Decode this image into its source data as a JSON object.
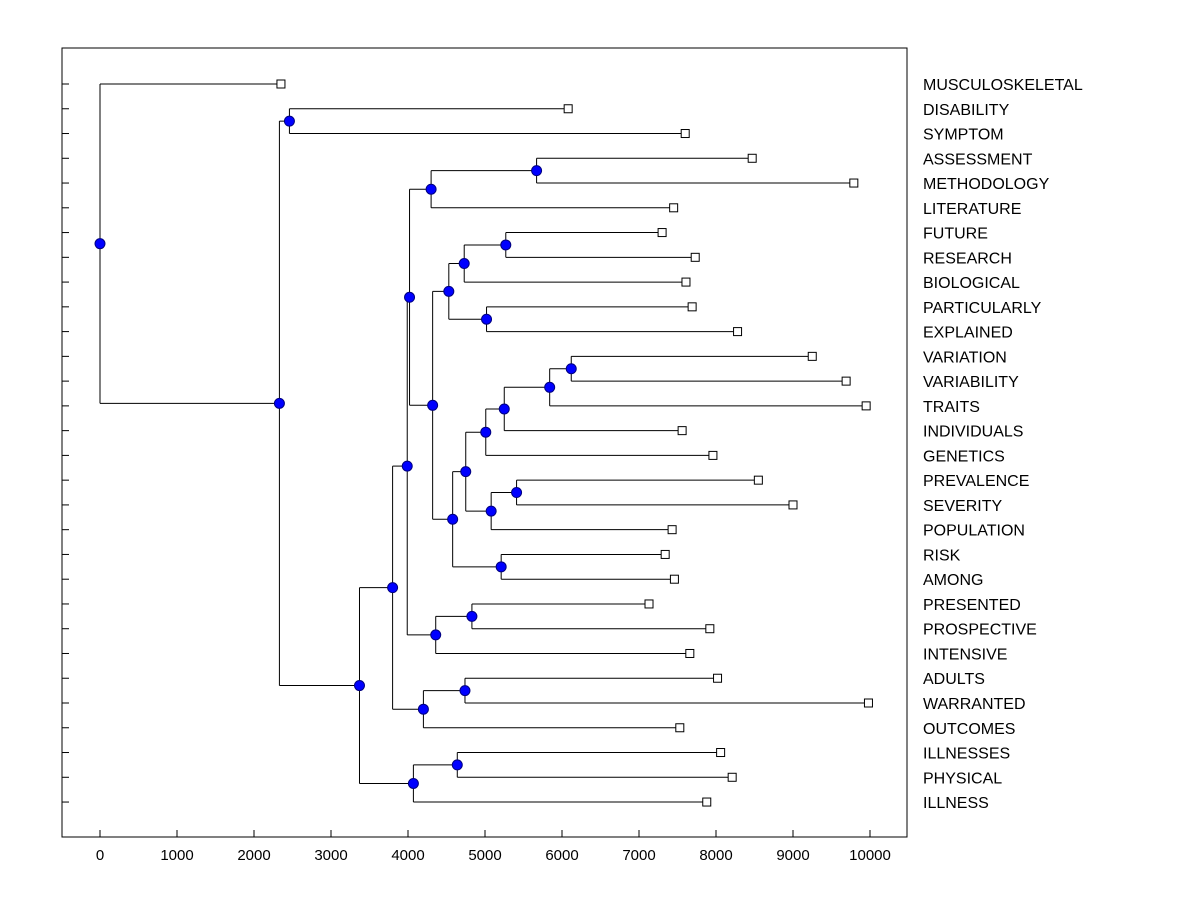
{
  "chart_data": {
    "type": "dendrogram",
    "title": "",
    "xlabel": "",
    "ylabel": "",
    "xlim": [
      -500,
      10500
    ],
    "xticks": [
      0,
      1000,
      2000,
      3000,
      4000,
      5000,
      6000,
      7000,
      8000,
      9000,
      10000
    ],
    "grid": false,
    "leaves": [
      {
        "label": "MUSCULOSKELETAL",
        "value": 2350
      },
      {
        "label": "DISABILITY",
        "value": 6080
      },
      {
        "label": "SYMPTOM",
        "value": 7600
      },
      {
        "label": "ASSESSMENT",
        "value": 8470
      },
      {
        "label": "METHODOLOGY",
        "value": 9790
      },
      {
        "label": "LITERATURE",
        "value": 7450
      },
      {
        "label": "FUTURE",
        "value": 7300
      },
      {
        "label": "RESEARCH",
        "value": 7730
      },
      {
        "label": "BIOLOGICAL",
        "value": 7610
      },
      {
        "label": "PARTICULARLY",
        "value": 7690
      },
      {
        "label": "EXPLAINED",
        "value": 8280
      },
      {
        "label": "VARIATION",
        "value": 9250
      },
      {
        "label": "VARIABILITY",
        "value": 9690
      },
      {
        "label": "TRAITS",
        "value": 9950
      },
      {
        "label": "INDIVIDUALS",
        "value": 7560
      },
      {
        "label": "GENETICS",
        "value": 7960
      },
      {
        "label": "PREVALENCE",
        "value": 8550
      },
      {
        "label": "SEVERITY",
        "value": 9000
      },
      {
        "label": "POPULATION",
        "value": 7430
      },
      {
        "label": "RISK",
        "value": 7340
      },
      {
        "label": "AMONG",
        "value": 7460
      },
      {
        "label": "PRESENTED",
        "value": 7130
      },
      {
        "label": "PROSPECTIVE",
        "value": 7920
      },
      {
        "label": "INTENSIVE",
        "value": 7660
      },
      {
        "label": "ADULTS",
        "value": 8020
      },
      {
        "label": "WARRANTED",
        "value": 9980
      },
      {
        "label": "OUTCOMES",
        "value": 7530
      },
      {
        "label": "ILLNESSES",
        "value": 8060
      },
      {
        "label": "PHYSICAL",
        "value": 8210
      },
      {
        "label": "ILLNESS",
        "value": 7880
      }
    ],
    "merges": [
      {
        "id": "n1",
        "value": 5670,
        "children": [
          "ASSESSMENT",
          "METHODOLOGY"
        ]
      },
      {
        "id": "n2",
        "value": 4300,
        "children": [
          "n1",
          "LITERATURE"
        ]
      },
      {
        "id": "n3",
        "value": 5270,
        "children": [
          "FUTURE",
          "RESEARCH"
        ]
      },
      {
        "id": "n4",
        "value": 4730,
        "children": [
          "n3",
          "BIOLOGICAL"
        ]
      },
      {
        "id": "n5",
        "value": 5020,
        "children": [
          "PARTICULARLY",
          "EXPLAINED"
        ]
      },
      {
        "id": "n6",
        "value": 4530,
        "children": [
          "n4",
          "n5"
        ]
      },
      {
        "id": "n7",
        "value": 6120,
        "children": [
          "VARIATION",
          "VARIABILITY"
        ]
      },
      {
        "id": "n8",
        "value": 5840,
        "children": [
          "n7",
          "TRAITS"
        ]
      },
      {
        "id": "n9",
        "value": 5250,
        "children": [
          "n8",
          "INDIVIDUALS"
        ]
      },
      {
        "id": "n10",
        "value": 5010,
        "children": [
          "n9",
          "GENETICS"
        ]
      },
      {
        "id": "n11",
        "value": 5410,
        "children": [
          "PREVALENCE",
          "SEVERITY"
        ]
      },
      {
        "id": "n12",
        "value": 5080,
        "children": [
          "n11",
          "POPULATION"
        ]
      },
      {
        "id": "n13",
        "value": 4750,
        "children": [
          "n10",
          "n12"
        ]
      },
      {
        "id": "n14",
        "value": 5210,
        "children": [
          "RISK",
          "AMONG"
        ]
      },
      {
        "id": "n15",
        "value": 4580,
        "children": [
          "n13",
          "n14"
        ]
      },
      {
        "id": "n16",
        "value": 4320,
        "children": [
          "n6",
          "n15"
        ]
      },
      {
        "id": "n17",
        "value": 4020,
        "children": [
          "n2",
          "n16"
        ]
      },
      {
        "id": "n18",
        "value": 4830,
        "children": [
          "PRESENTED",
          "PROSPECTIVE"
        ]
      },
      {
        "id": "n19",
        "value": 4360,
        "children": [
          "n18",
          "INTENSIVE"
        ]
      },
      {
        "id": "n20",
        "value": 3990,
        "children": [
          "n17",
          "n19"
        ]
      },
      {
        "id": "n21",
        "value": 4740,
        "children": [
          "ADULTS",
          "WARRANTED"
        ]
      },
      {
        "id": "n22",
        "value": 4200,
        "children": [
          "n21",
          "OUTCOMES"
        ]
      },
      {
        "id": "n23",
        "value": 3800,
        "children": [
          "n20",
          "n22"
        ]
      },
      {
        "id": "n24",
        "value": 4640,
        "children": [
          "ILLNESSES",
          "PHYSICAL"
        ]
      },
      {
        "id": "n25",
        "value": 4070,
        "children": [
          "n24",
          "ILLNESS"
        ]
      },
      {
        "id": "n26",
        "value": 3370,
        "children": [
          "n23",
          "n25"
        ]
      },
      {
        "id": "n27",
        "value": 2460,
        "children": [
          "DISABILITY",
          "SYMPTOM"
        ]
      },
      {
        "id": "n28",
        "value": 2330,
        "children": [
          "n27",
          "n26"
        ]
      },
      {
        "id": "n29",
        "value": 0,
        "children": [
          "MUSCULOSKELETAL",
          "n28"
        ]
      }
    ],
    "colors": {
      "axis": "#000000",
      "branch": "#000000",
      "node_fill": "#0000ff",
      "node_stroke": "#000080",
      "leaf_fill": "#ffffff",
      "background": "#ffffff"
    }
  }
}
